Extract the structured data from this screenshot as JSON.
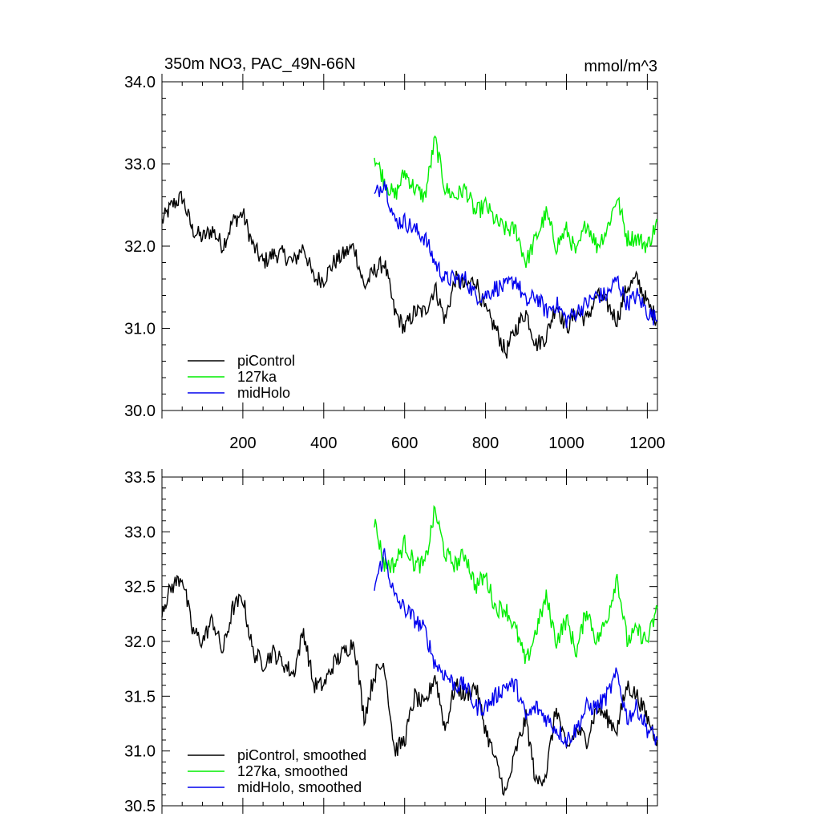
{
  "chart_data": [
    {
      "type": "line",
      "title": "350m NO3, PAC_49N-66N",
      "units": "mmol/m^3",
      "xlim": [
        0,
        1225
      ],
      "ylim": [
        30.0,
        34.0
      ],
      "x_ticks": [
        200,
        400,
        600,
        800,
        1000,
        1200
      ],
      "x_tick_labels": [
        "200",
        "400",
        "600",
        "800",
        "1000",
        "1200"
      ],
      "y_ticks": [
        30.0,
        31.0,
        32.0,
        33.0,
        34.0
      ],
      "y_tick_labels": [
        "30.0",
        "31.0",
        "32.0",
        "33.0",
        "34.0"
      ],
      "legend_position": "bottom-left",
      "series": [
        {
          "name": "piControl",
          "color": "#000000",
          "x": [
            0,
            25,
            50,
            75,
            100,
            125,
            150,
            175,
            200,
            225,
            250,
            275,
            300,
            325,
            350,
            375,
            400,
            425,
            450,
            475,
            500,
            525,
            550,
            575,
            600,
            625,
            650,
            675,
            700,
            725,
            750,
            775,
            800,
            825,
            850,
            875,
            900,
            925,
            950,
            975,
            1000,
            1025,
            1050,
            1075,
            1100,
            1125,
            1150,
            1175,
            1200,
            1225
          ],
          "values": [
            32.3,
            32.5,
            32.6,
            32.2,
            32.1,
            32.2,
            32.0,
            32.3,
            32.4,
            32.0,
            31.8,
            31.9,
            31.9,
            31.8,
            32.0,
            31.6,
            31.6,
            31.8,
            31.9,
            32.0,
            31.5,
            31.7,
            31.8,
            31.2,
            31.0,
            31.2,
            31.2,
            31.5,
            31.1,
            31.6,
            31.5,
            31.6,
            31.2,
            31.0,
            30.7,
            31.0,
            31.2,
            30.8,
            30.9,
            31.3,
            31.0,
            31.2,
            31.1,
            31.4,
            31.3,
            31.1,
            31.5,
            31.6,
            31.3,
            31.1
          ]
        },
        {
          "name": "127ka",
          "color": "#00ee00",
          "x": [
            525,
            550,
            575,
            600,
            625,
            650,
            675,
            700,
            725,
            750,
            775,
            800,
            825,
            850,
            875,
            900,
            925,
            950,
            975,
            1000,
            1025,
            1050,
            1075,
            1100,
            1125,
            1150,
            1175,
            1200,
            1225
          ],
          "values": [
            33.1,
            32.8,
            32.6,
            32.9,
            32.7,
            32.6,
            33.3,
            32.7,
            32.6,
            32.7,
            32.4,
            32.5,
            32.3,
            32.2,
            32.2,
            31.8,
            32.1,
            32.4,
            32.0,
            32.2,
            31.9,
            32.3,
            32.0,
            32.2,
            32.6,
            32.1,
            32.1,
            32.0,
            32.3
          ]
        },
        {
          "name": "midHolo",
          "color": "#0000ee",
          "x": [
            525,
            550,
            575,
            600,
            625,
            650,
            675,
            700,
            725,
            750,
            775,
            800,
            825,
            850,
            875,
            900,
            925,
            950,
            975,
            1000,
            1025,
            1050,
            1075,
            1100,
            1125,
            1150,
            1175,
            1200,
            1225
          ],
          "values": [
            32.6,
            32.8,
            32.3,
            32.3,
            32.2,
            32.1,
            31.8,
            31.6,
            31.6,
            31.6,
            31.4,
            31.4,
            31.5,
            31.5,
            31.6,
            31.3,
            31.4,
            31.2,
            31.3,
            31.1,
            31.2,
            31.3,
            31.4,
            31.4,
            31.6,
            31.3,
            31.4,
            31.2,
            31.1
          ]
        }
      ]
    },
    {
      "type": "line",
      "title": "",
      "xlim": [
        0,
        1225
      ],
      "ylim": [
        30.5,
        33.5
      ],
      "y_ticks": [
        30.5,
        31.0,
        31.5,
        32.0,
        32.5,
        33.0,
        33.5
      ],
      "y_tick_labels": [
        "30.5",
        "31.0",
        "31.5",
        "32.0",
        "32.5",
        "33.0",
        "33.5"
      ],
      "legend_position": "bottom-left",
      "series": [
        {
          "name": "piControl, smoothed",
          "color": "#000000",
          "x": [
            0,
            25,
            50,
            75,
            100,
            125,
            150,
            175,
            200,
            225,
            250,
            275,
            300,
            325,
            350,
            375,
            400,
            425,
            450,
            475,
            500,
            525,
            550,
            575,
            600,
            625,
            650,
            675,
            700,
            725,
            750,
            775,
            800,
            825,
            850,
            875,
            900,
            925,
            950,
            975,
            1000,
            1025,
            1050,
            1075,
            1100,
            1125,
            1150,
            1175,
            1200,
            1225
          ],
          "values": [
            32.3,
            32.5,
            32.6,
            32.1,
            32.0,
            32.2,
            31.9,
            32.3,
            32.4,
            31.9,
            31.8,
            31.9,
            31.8,
            31.7,
            32.1,
            31.6,
            31.6,
            31.8,
            31.9,
            32.0,
            31.3,
            31.7,
            31.8,
            31.0,
            31.1,
            31.5,
            31.4,
            31.7,
            31.2,
            31.6,
            31.5,
            31.6,
            31.2,
            30.9,
            30.6,
            31.0,
            31.3,
            30.7,
            30.8,
            31.4,
            31.0,
            31.2,
            31.1,
            31.4,
            31.3,
            31.2,
            31.6,
            31.5,
            31.3,
            31.1
          ]
        },
        {
          "name": "127ka, smoothed",
          "color": "#00ee00",
          "x": [
            525,
            550,
            575,
            600,
            625,
            650,
            675,
            700,
            725,
            750,
            775,
            800,
            825,
            850,
            875,
            900,
            925,
            950,
            975,
            1000,
            1025,
            1050,
            1075,
            1100,
            1125,
            1150,
            1175,
            1200,
            1225
          ],
          "values": [
            33.1,
            32.7,
            32.7,
            32.9,
            32.7,
            32.7,
            33.2,
            32.8,
            32.7,
            32.8,
            32.5,
            32.6,
            32.3,
            32.3,
            32.1,
            31.8,
            32.1,
            32.4,
            32.0,
            32.2,
            31.9,
            32.3,
            32.0,
            32.2,
            32.6,
            32.0,
            32.1,
            32.0,
            32.3
          ]
        },
        {
          "name": "midHolo, smoothed",
          "color": "#0000ee",
          "x": [
            525,
            550,
            575,
            600,
            625,
            650,
            675,
            700,
            725,
            750,
            775,
            800,
            825,
            850,
            875,
            900,
            925,
            950,
            975,
            1000,
            1025,
            1050,
            1075,
            1100,
            1125,
            1150,
            1175,
            1200,
            1225
          ],
          "values": [
            32.5,
            32.8,
            32.4,
            32.3,
            32.2,
            32.1,
            31.8,
            31.7,
            31.6,
            31.6,
            31.4,
            31.4,
            31.5,
            31.6,
            31.6,
            31.3,
            31.4,
            31.3,
            31.2,
            31.1,
            31.2,
            31.4,
            31.4,
            31.5,
            31.7,
            31.3,
            31.4,
            31.2,
            31.1
          ]
        }
      ]
    }
  ]
}
